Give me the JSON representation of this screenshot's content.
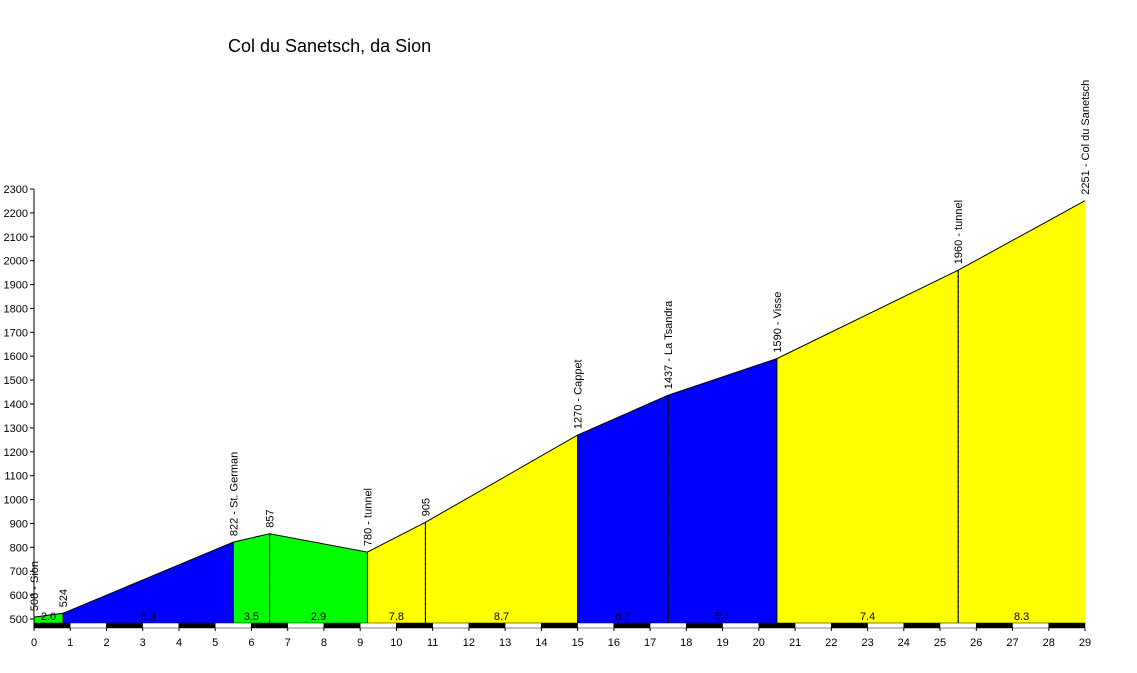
{
  "chart_data": {
    "type": "area",
    "title": "Col du Sanetsch, da Sion",
    "xlabel": "",
    "ylabel": "",
    "xlim": [
      0,
      29
    ],
    "ylim": [
      450,
      2300
    ],
    "x_ticks": [
      "0",
      "1",
      "2",
      "3",
      "4",
      "5",
      "6",
      "7",
      "8",
      "9",
      "10",
      "11",
      "12",
      "13",
      "14",
      "15",
      "16",
      "17",
      "18",
      "19",
      "20",
      "21",
      "22",
      "23",
      "24",
      "25",
      "26",
      "27",
      "28",
      "29"
    ],
    "y_ticks": [
      "500",
      "600",
      "700",
      "800",
      "900",
      "1000",
      "1100",
      "1200",
      "1300",
      "1400",
      "1500",
      "1600",
      "1700",
      "1800",
      "1900",
      "2000",
      "2100",
      "2200",
      "2300"
    ],
    "segment_colors": {
      "easy": "#00ff00",
      "medium": "#ffff00",
      "hard": "#0000ff"
    },
    "profile": [
      {
        "x": 0.0,
        "y": 508
      },
      {
        "x": 0.8,
        "y": 524
      },
      {
        "x": 5.5,
        "y": 822
      },
      {
        "x": 6.5,
        "y": 857
      },
      {
        "x": 9.2,
        "y": 780
      },
      {
        "x": 10.8,
        "y": 905
      },
      {
        "x": 15.0,
        "y": 1270
      },
      {
        "x": 17.5,
        "y": 1437
      },
      {
        "x": 20.5,
        "y": 1590
      },
      {
        "x": 25.5,
        "y": 1960
      },
      {
        "x": 29.0,
        "y": 2251
      }
    ],
    "segments": [
      {
        "x0": 0.0,
        "x1": 0.8,
        "label": "2.0",
        "level": "easy"
      },
      {
        "x0": 0.8,
        "x1": 5.5,
        "label": "6.3",
        "level": "hard"
      },
      {
        "x0": 5.5,
        "x1": 6.5,
        "label": "3.5",
        "level": "easy"
      },
      {
        "x0": 6.5,
        "x1": 9.2,
        "label": "2.9",
        "level": "easy"
      },
      {
        "x0": 9.2,
        "x1": 10.8,
        "label": "7.8",
        "level": "medium"
      },
      {
        "x0": 10.8,
        "x1": 15.0,
        "label": "8.7",
        "level": "medium"
      },
      {
        "x0": 15.0,
        "x1": 17.5,
        "label": "6.7",
        "level": "hard"
      },
      {
        "x0": 17.5,
        "x1": 20.5,
        "label": "5.1",
        "level": "hard"
      },
      {
        "x0": 20.5,
        "x1": 25.5,
        "label": "7.4",
        "level": "medium"
      },
      {
        "x0": 25.5,
        "x1": 29.0,
        "label": "8.3",
        "level": "medium"
      }
    ],
    "annotations": [
      {
        "x": 0.0,
        "y": 508,
        "label": "508 - Sion",
        "guide": false
      },
      {
        "x": 0.8,
        "y": 524,
        "label": "524",
        "guide": false
      },
      {
        "x": 5.5,
        "y": 822,
        "label": "822 - St. German",
        "guide": false
      },
      {
        "x": 6.5,
        "y": 857,
        "label": "857",
        "guide": true
      },
      {
        "x": 9.2,
        "y": 780,
        "label": "780 - tunnel",
        "guide": false
      },
      {
        "x": 10.8,
        "y": 905,
        "label": "905",
        "guide": true
      },
      {
        "x": 15.0,
        "y": 1270,
        "label": "1270 - Cappet",
        "guide": false
      },
      {
        "x": 17.5,
        "y": 1437,
        "label": "1437 - La Tsandra",
        "guide": true
      },
      {
        "x": 20.5,
        "y": 1590,
        "label": "1590 - Visse",
        "guide": false
      },
      {
        "x": 25.5,
        "y": 1960,
        "label": "1960 - tunnel",
        "guide": true
      },
      {
        "x": 29.0,
        "y": 2251,
        "label": "2251 - Col du Sanetsch",
        "guide": false
      }
    ]
  }
}
